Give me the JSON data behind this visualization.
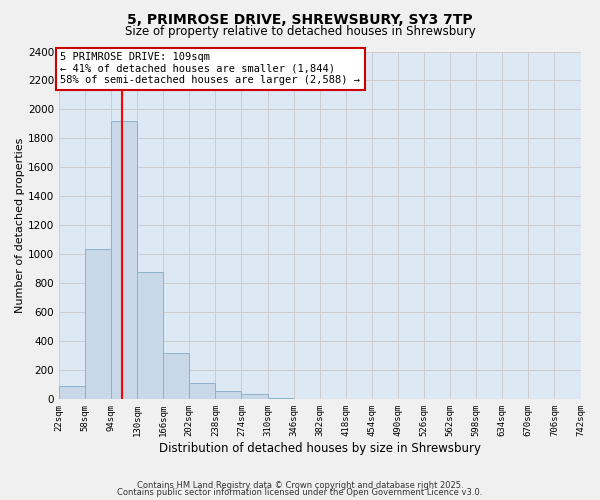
{
  "title": "5, PRIMROSE DRIVE, SHREWSBURY, SY3 7TP",
  "subtitle": "Size of property relative to detached houses in Shrewsbury",
  "xlabel": "Distribution of detached houses by size in Shrewsbury",
  "ylabel": "Number of detached properties",
  "bin_edges": [
    22,
    58,
    94,
    130,
    166,
    202,
    238,
    274,
    310,
    346,
    382,
    418,
    454,
    490,
    526,
    562,
    598,
    634,
    670,
    706,
    742
  ],
  "bar_heights": [
    90,
    1040,
    1920,
    880,
    320,
    115,
    55,
    35,
    10,
    5,
    2,
    1,
    0,
    0,
    0,
    0,
    0,
    0,
    0,
    0
  ],
  "bar_color": "#c8d8e8",
  "bar_edge_color": "#8ab4cc",
  "property_size": 109,
  "annotation_title": "5 PRIMROSE DRIVE: 109sqm",
  "annotation_line1": "← 41% of detached houses are smaller (1,844)",
  "annotation_line2": "58% of semi-detached houses are larger (2,588) →",
  "annotation_box_color": "#ffffff",
  "annotation_box_edge_color": "#cc0000",
  "ylim": [
    0,
    2400
  ],
  "yticks": [
    0,
    200,
    400,
    600,
    800,
    1000,
    1200,
    1400,
    1600,
    1800,
    2000,
    2200,
    2400
  ],
  "grid_color": "#cccccc",
  "bg_color": "#dce8f4",
  "fig_color": "#f0f0f0",
  "footer1": "Contains HM Land Registry data © Crown copyright and database right 2025.",
  "footer2": "Contains public sector information licensed under the Open Government Licence v3.0.",
  "tick_labels": [
    "22sqm",
    "58sqm",
    "94sqm",
    "130sqm",
    "166sqm",
    "202sqm",
    "238sqm",
    "274sqm",
    "310sqm",
    "346sqm",
    "382sqm",
    "418sqm",
    "454sqm",
    "490sqm",
    "526sqm",
    "562sqm",
    "598sqm",
    "634sqm",
    "670sqm",
    "706sqm",
    "742sqm"
  ]
}
